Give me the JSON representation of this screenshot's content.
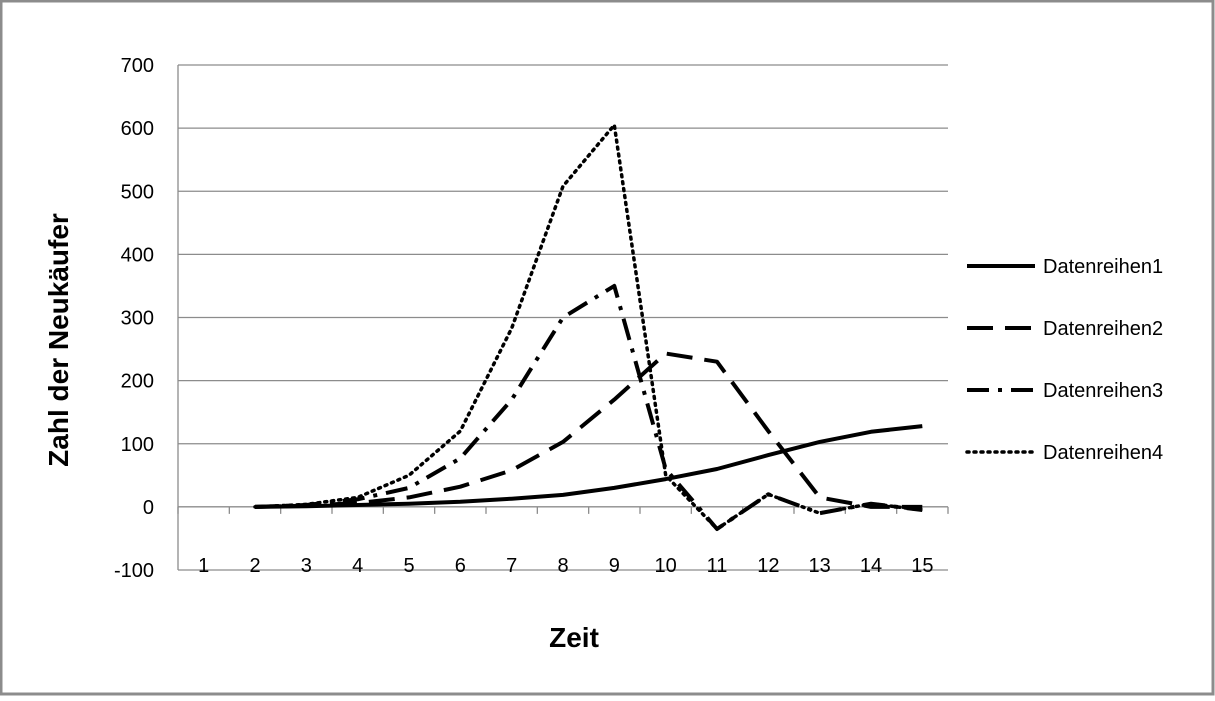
{
  "chart_data": {
    "type": "line",
    "title": "",
    "xlabel": "Zeit",
    "ylabel": "Zahl der Neukäufer",
    "categories": [
      "1",
      "2",
      "3",
      "4",
      "5",
      "6",
      "7",
      "8",
      "9",
      "10",
      "11",
      "12",
      "13",
      "14",
      "15"
    ],
    "ylim": [
      -100,
      700
    ],
    "yticks": [
      "-100",
      "0",
      "100",
      "200",
      "300",
      "400",
      "500",
      "600",
      "700"
    ],
    "grid": true,
    "legend_position": "right",
    "series": [
      {
        "name": "Datenreihen1",
        "dash": "solid",
        "values": [
          null,
          0,
          1,
          3,
          5,
          8,
          13,
          19,
          30,
          44,
          60,
          82,
          103,
          119,
          128
        ]
      },
      {
        "name": "Datenreihen2",
        "dash": "dashed",
        "values": [
          null,
          0,
          2,
          6,
          15,
          32,
          58,
          103,
          170,
          243,
          230,
          120,
          15,
          0,
          0
        ]
      },
      {
        "name": "Datenreihen3",
        "dash": "dash-dot",
        "values": [
          null,
          0,
          3,
          12,
          30,
          77,
          170,
          300,
          350,
          60,
          -35,
          20,
          -10,
          5,
          -5
        ]
      },
      {
        "name": "Datenreihen4",
        "dash": "dotted",
        "values": [
          null,
          0,
          4,
          15,
          50,
          120,
          283,
          508,
          605,
          50,
          -35,
          20,
          -10,
          5,
          -5
        ]
      }
    ],
    "colors": {
      "line": "#000000",
      "grid": "#8c8c8c",
      "axis": "#8c8c8c",
      "frame": "#8c8c8c"
    }
  }
}
